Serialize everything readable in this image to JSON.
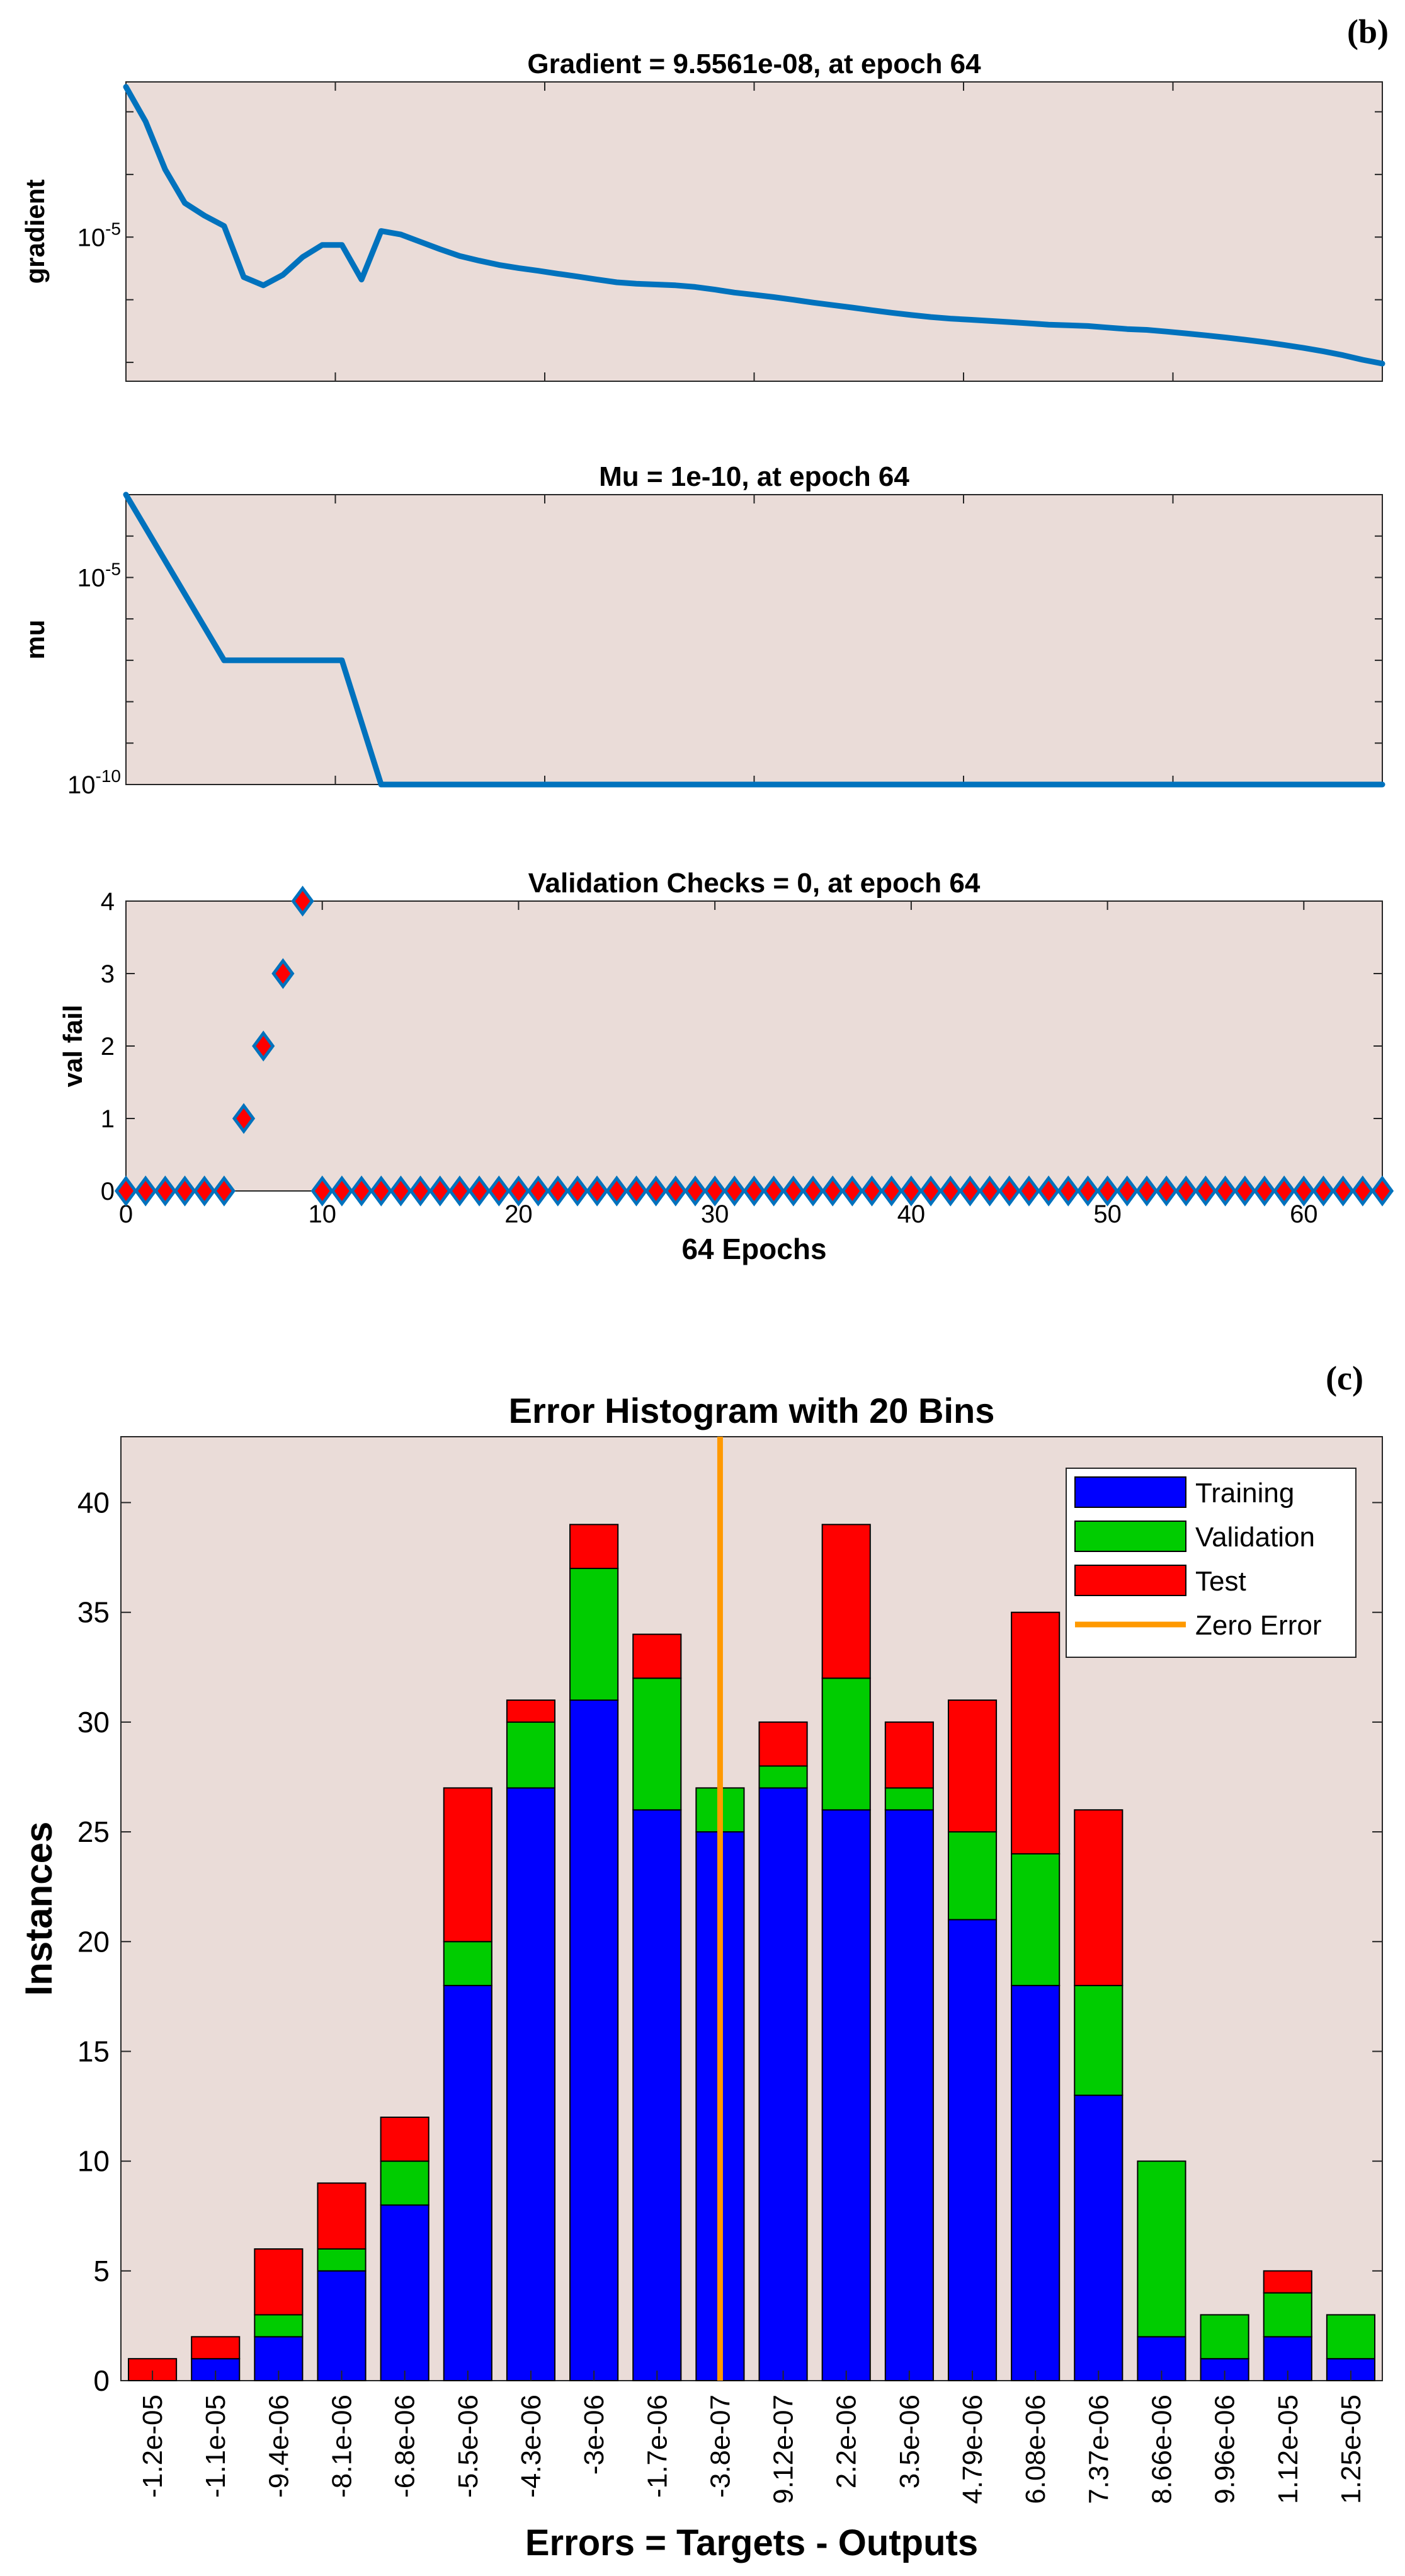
{
  "chart_data": [
    {
      "panel_label": "(b)",
      "type": "line",
      "title": "Gradient = 9.5561e-08, at epoch 64",
      "ylabel": "gradient",
      "yscale": "log",
      "yticks": [
        {
          "value": 1e-05,
          "label": "10^{-5}"
        }
      ],
      "ylim": [
        5e-08,
        0.003
      ],
      "xlim": [
        0,
        64
      ],
      "grid": false,
      "color": "#0072BD",
      "x": [
        0,
        1,
        2,
        3,
        4,
        5,
        6,
        7,
        8,
        9,
        10,
        11,
        12,
        13,
        14,
        15,
        16,
        17,
        18,
        19,
        20,
        21,
        22,
        23,
        24,
        25,
        26,
        27,
        28,
        29,
        30,
        31,
        32,
        33,
        34,
        35,
        36,
        37,
        38,
        39,
        40,
        41,
        42,
        43,
        44,
        45,
        46,
        47,
        48,
        49,
        50,
        51,
        52,
        53,
        54,
        55,
        56,
        57,
        58,
        59,
        60,
        61,
        62,
        63,
        64
      ],
      "values": [
        0.0025,
        0.0007,
        0.00012,
        3.5e-05,
        2.2e-05,
        1.5e-05,
        2.3e-06,
        1.7e-06,
        2.5e-06,
        4.8e-06,
        7.5e-06,
        7.5e-06,
        2.1e-06,
        1.25e-05,
        1.1e-05,
        8.4e-06,
        6.4e-06,
        5e-06,
        4.2e-06,
        3.6e-06,
        3.2e-06,
        2.9e-06,
        2.6e-06,
        2.35e-06,
        2.1e-06,
        1.9e-06,
        1.8e-06,
        1.75e-06,
        1.7e-06,
        1.6e-06,
        1.45e-06,
        1.3e-06,
        1.2e-06,
        1.1e-06,
        1e-06,
        9e-07,
        8.2e-07,
        7.5e-07,
        6.8e-07,
        6.2e-07,
        5.7e-07,
        5.3e-07,
        5e-07,
        4.8e-07,
        4.6e-07,
        4.4e-07,
        4.2e-07,
        4e-07,
        3.9e-07,
        3.8e-07,
        3.6e-07,
        3.4e-07,
        3.3e-07,
        3.1e-07,
        2.9e-07,
        2.7e-07,
        2.5e-07,
        2.3e-07,
        2.1e-07,
        1.9e-07,
        1.7e-07,
        1.5e-07,
        1.3e-07,
        1.1e-07,
        9.56e-08
      ]
    },
    {
      "type": "line",
      "title": "Mu = 1e-10, at epoch 64",
      "ylabel": "mu",
      "yscale": "log",
      "yticks": [
        {
          "value": 1e-05,
          "label": "10^{-5}"
        },
        {
          "value": 1e-10,
          "label": "10^{-10}"
        }
      ],
      "ylim": [
        1e-10,
        0.001
      ],
      "xlim": [
        0,
        64
      ],
      "grid": false,
      "color": "#0072BD",
      "x": [
        0,
        5,
        6,
        11,
        13,
        64
      ],
      "values": [
        0.001,
        1e-07,
        1e-07,
        1e-07,
        1e-10,
        1e-10
      ]
    },
    {
      "type": "scatter",
      "title": "Validation Checks = 0, at epoch 64",
      "xlabel": "64 Epochs",
      "ylabel": "val fail",
      "ylim": [
        0,
        4
      ],
      "xlim": [
        0,
        64
      ],
      "yticks": [
        0,
        1,
        2,
        3,
        4
      ],
      "xticks": [
        0,
        10,
        20,
        30,
        40,
        50,
        60
      ],
      "grid": false,
      "marker": "diamond",
      "marker_fill": "#ff0000",
      "marker_edge": "#0072BD",
      "x": [
        0,
        1,
        2,
        3,
        4,
        5,
        6,
        7,
        8,
        9,
        10,
        11,
        12,
        13,
        14,
        15,
        16,
        17,
        18,
        19,
        20,
        21,
        22,
        23,
        24,
        25,
        26,
        27,
        28,
        29,
        30,
        31,
        32,
        33,
        34,
        35,
        36,
        37,
        38,
        39,
        40,
        41,
        42,
        43,
        44,
        45,
        46,
        47,
        48,
        49,
        50,
        51,
        52,
        53,
        54,
        55,
        56,
        57,
        58,
        59,
        60,
        61,
        62,
        63,
        64
      ],
      "values": [
        0,
        0,
        0,
        0,
        0,
        0,
        1,
        2,
        3,
        4,
        0,
        0,
        0,
        0,
        0,
        0,
        0,
        0,
        0,
        0,
        0,
        0,
        0,
        0,
        0,
        0,
        0,
        0,
        0,
        0,
        0,
        0,
        0,
        0,
        0,
        0,
        0,
        0,
        0,
        0,
        0,
        0,
        0,
        0,
        0,
        0,
        0,
        0,
        0,
        0,
        0,
        0,
        0,
        0,
        0,
        0,
        0,
        0,
        0,
        0,
        0,
        0,
        0,
        0,
        0
      ]
    },
    {
      "panel_label": "(c)",
      "type": "bar",
      "stacked": true,
      "title": "Error Histogram with 20 Bins",
      "xlabel": "Errors = Targets - Outputs",
      "ylabel": "Instances",
      "ylim": [
        0,
        43
      ],
      "yticks": [
        0,
        5,
        10,
        15,
        20,
        25,
        30,
        35,
        40
      ],
      "grid": false,
      "legend_position": "top-right",
      "categories": [
        "-1.2e-05",
        "-1.1e-05",
        "-9.4e-06",
        "-8.1e-06",
        "-6.8e-06",
        "-5.5e-06",
        "-4.3e-06",
        "-3e-06",
        "-1.7e-06",
        "-3.8e-07",
        "9.12e-07",
        "2.2e-06",
        "3.5e-06",
        "4.79e-06",
        "6.08e-06",
        "7.37e-06",
        "8.66e-06",
        "9.96e-06",
        "1.12e-05",
        "1.25e-05"
      ],
      "series": [
        {
          "name": "Training",
          "color": "#0000ff",
          "values": [
            0,
            1,
            2,
            5,
            8,
            18,
            27,
            31,
            26,
            25,
            27,
            26,
            26,
            21,
            18,
            13,
            2,
            1,
            2,
            1
          ]
        },
        {
          "name": "Validation",
          "color": "#00cc00",
          "values": [
            0,
            0,
            1,
            1,
            2,
            2,
            3,
            6,
            6,
            2,
            1,
            6,
            1,
            4,
            6,
            5,
            8,
            2,
            2,
            2
          ]
        },
        {
          "name": "Test",
          "color": "#ff0000",
          "values": [
            1,
            1,
            3,
            3,
            2,
            7,
            1,
            2,
            2,
            0,
            2,
            7,
            3,
            6,
            11,
            8,
            0,
            0,
            1,
            0
          ]
        }
      ],
      "zero_error": {
        "name": "Zero Error",
        "color": "#ff9900",
        "bin_position": 9.5
      }
    }
  ]
}
